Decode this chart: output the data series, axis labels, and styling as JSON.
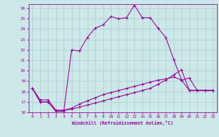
{
  "xlabel": "Windchill (Refroidissement éolien,°C)",
  "xlim": [
    -0.5,
    23.5
  ],
  "ylim": [
    16,
    26.4
  ],
  "yticks": [
    16,
    17,
    18,
    19,
    20,
    21,
    22,
    23,
    24,
    25,
    26
  ],
  "xticks": [
    0,
    1,
    2,
    3,
    4,
    5,
    6,
    7,
    8,
    9,
    10,
    11,
    12,
    13,
    14,
    15,
    16,
    17,
    18,
    19,
    20,
    21,
    22,
    23
  ],
  "bg_color": "#cce8e8",
  "grid_color": "#aacccc",
  "line_color": "#990099",
  "line_width": 0.8,
  "marker": "+",
  "marker_size": 3.5,
  "series1_x": [
    0,
    1,
    2,
    3,
    4,
    5,
    6,
    7,
    8,
    9,
    10,
    11,
    12,
    13,
    14,
    15,
    16,
    17,
    18,
    19,
    20,
    21,
    22,
    23
  ],
  "series1_y": [
    18.3,
    17.0,
    17.0,
    16.1,
    16.1,
    22.0,
    21.9,
    23.2,
    24.1,
    24.4,
    25.2,
    25.0,
    25.1,
    26.3,
    25.1,
    25.1,
    24.1,
    23.2,
    21.1,
    19.1,
    19.3,
    18.1,
    18.1,
    18.1
  ],
  "series2_x": [
    0,
    1,
    2,
    3,
    4,
    5,
    6,
    7,
    8,
    9,
    10,
    11,
    12,
    13,
    14,
    15,
    16,
    17,
    18,
    19,
    20,
    21,
    22,
    23
  ],
  "series2_y": [
    18.3,
    17.2,
    17.2,
    16.2,
    16.2,
    16.4,
    16.8,
    17.1,
    17.4,
    17.7,
    17.9,
    18.1,
    18.3,
    18.5,
    18.7,
    18.9,
    19.1,
    19.2,
    19.4,
    19.1,
    18.1,
    18.1,
    18.1,
    18.1
  ],
  "series3_x": [
    0,
    1,
    2,
    3,
    4,
    5,
    6,
    7,
    8,
    9,
    10,
    11,
    12,
    13,
    14,
    15,
    16,
    17,
    18,
    19,
    20,
    21,
    22,
    23
  ],
  "series3_y": [
    18.3,
    17.0,
    17.0,
    16.1,
    16.2,
    16.3,
    16.5,
    16.7,
    16.9,
    17.1,
    17.3,
    17.5,
    17.7,
    17.9,
    18.1,
    18.3,
    18.7,
    19.1,
    19.6,
    20.1,
    18.1,
    18.1,
    18.1,
    18.1
  ]
}
